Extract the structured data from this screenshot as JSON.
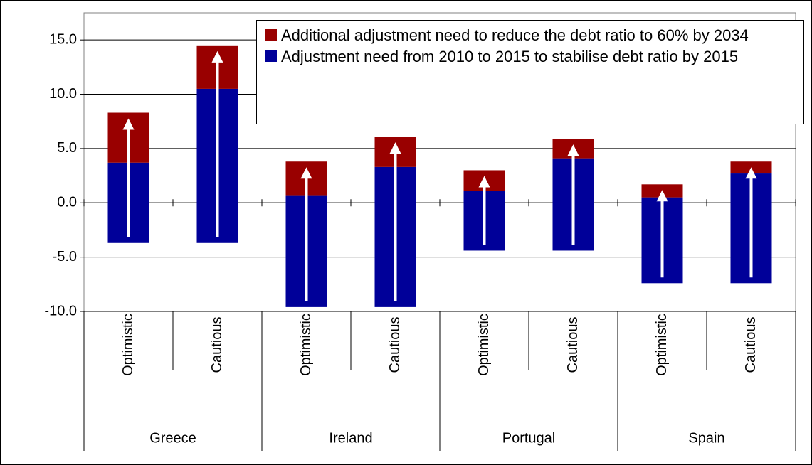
{
  "chart_data": {
    "type": "floating-stacked-bar",
    "categories": [
      "Optimistic",
      "Cautious",
      "Optimistic",
      "Cautious",
      "Optimistic",
      "Cautious",
      "Optimistic",
      "Cautious"
    ],
    "groups": [
      "Greece",
      "Ireland",
      "Portugal",
      "Spain"
    ],
    "starts": [
      -3.7,
      -3.7,
      -9.6,
      -9.6,
      -4.4,
      -4.4,
      -7.4,
      -7.4
    ],
    "series": [
      {
        "name": "Additional adjustment need to reduce the debt ratio to 60% by 2034",
        "color": "#990000",
        "values": [
          4.6,
          4.0,
          3.1,
          2.8,
          1.9,
          1.8,
          1.2,
          1.1
        ]
      },
      {
        "name": "Adjustment need from 2010 to 2015 to stabilise debt ratio by 2015",
        "color": "#000099",
        "values": [
          7.4,
          14.2,
          10.3,
          12.9,
          5.5,
          8.5,
          7.9,
          10.1
        ]
      }
    ],
    "ylim": [
      -10,
      17.5
    ],
    "yticks": [
      {
        "value": -10,
        "label": "-10.0"
      },
      {
        "value": -5,
        "label": "-5.0"
      },
      {
        "value": 0,
        "label": "0.0"
      },
      {
        "value": 5,
        "label": "5.0"
      },
      {
        "value": 10,
        "label": "10.0"
      },
      {
        "value": 15,
        "label": "15.0"
      }
    ],
    "grid": true
  }
}
